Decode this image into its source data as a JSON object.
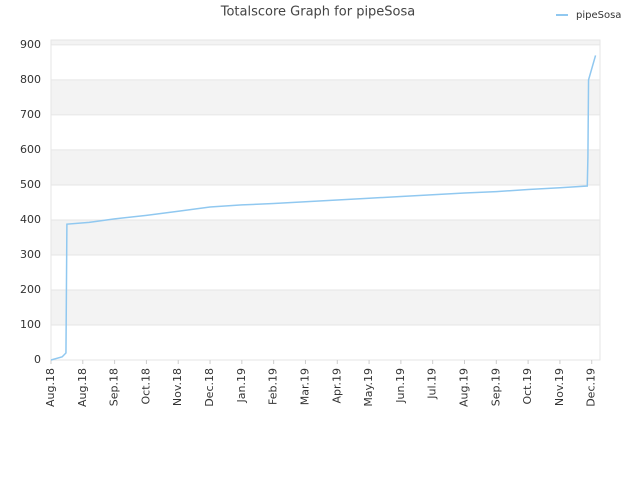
{
  "chart_data": {
    "type": "line",
    "title": "Totalscore Graph for pipeSosa",
    "x": [
      0,
      0.35,
      0.47,
      0.5,
      1.2,
      2,
      3,
      4,
      5,
      6,
      7,
      8,
      9,
      10,
      11,
      12,
      13,
      14,
      15,
      16,
      16.86,
      16.88,
      16.9,
      17.12
    ],
    "series": [
      {
        "name": "pipeSosa",
        "color": "#90c8f0",
        "values": [
          0,
          9,
          20,
          388,
          393,
          403,
          413,
          425,
          437,
          443,
          447,
          452,
          457,
          462,
          467,
          472,
          477,
          481,
          487,
          492,
          497,
          580,
          800,
          870
        ]
      }
    ],
    "xlim": [
      0,
      17.26
    ],
    "xticks": [
      {
        "value": 0,
        "label": "Aug.18"
      },
      {
        "value": 1,
        "label": "Aug.18"
      },
      {
        "value": 2,
        "label": "Sep.18"
      },
      {
        "value": 3,
        "label": "Oct.18"
      },
      {
        "value": 4,
        "label": "Nov.18"
      },
      {
        "value": 5,
        "label": "Dec.18"
      },
      {
        "value": 6,
        "label": "Jan.19"
      },
      {
        "value": 7,
        "label": "Feb.19"
      },
      {
        "value": 8,
        "label": "Mar.19"
      },
      {
        "value": 9,
        "label": "Apr.19"
      },
      {
        "value": 10,
        "label": "May.19"
      },
      {
        "value": 11,
        "label": "Jun.19"
      },
      {
        "value": 12,
        "label": "Jul.19"
      },
      {
        "value": 13,
        "label": "Aug.19"
      },
      {
        "value": 14,
        "label": "Sep.19"
      },
      {
        "value": 15,
        "label": "Oct.19"
      },
      {
        "value": 16,
        "label": "Nov.19"
      },
      {
        "value": 17,
        "label": "Dec.19"
      }
    ],
    "ylim": [
      0,
      914
    ],
    "yticks": [
      0,
      100,
      200,
      300,
      400,
      500,
      600,
      700,
      800,
      900
    ],
    "grid": true,
    "legend": "top-right"
  }
}
